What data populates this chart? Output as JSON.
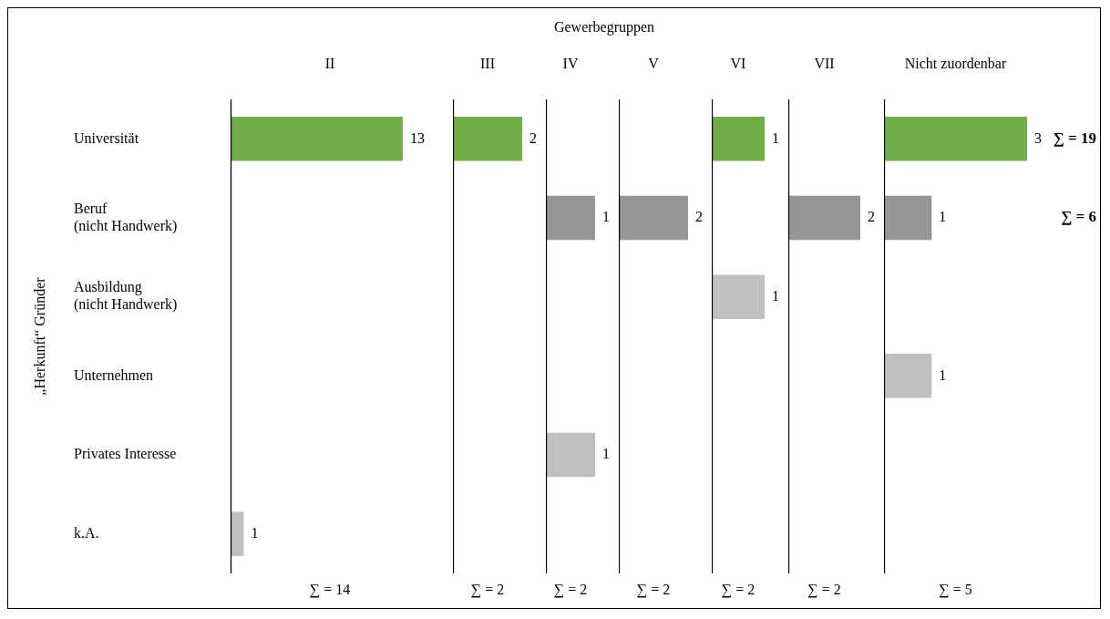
{
  "chart_data": [
    {
      "type": "bar",
      "orientation": "horizontal",
      "title": "II",
      "ylabel": "„Herkunft“ Gründer",
      "categories": [
        "Universität",
        "Beruf\n(nicht Handwerk)",
        "Ausbildung\n(nicht Handwerk)",
        "Unternehmen",
        "Privates Interesse",
        "k.A."
      ],
      "values": [
        13,
        null,
        null,
        null,
        null,
        1
      ],
      "colors": [
        "#70ad47",
        "#969696",
        "#c0c0c0",
        "#c0c0c0",
        "#c0c0c0",
        "#c0c0c0"
      ],
      "data_labels": true,
      "tick_labels": "y",
      "grid": false,
      "legend": false,
      "annotations": [
        "∑ = 14"
      ]
    },
    {
      "type": "bar",
      "orientation": "horizontal",
      "title": "III",
      "categories": [
        "Universität",
        "Beruf\n(nicht Handwerk)",
        "Ausbildung\n(nicht Handwerk)",
        "Unternehmen",
        "Privates Interesse",
        "k.A."
      ],
      "values": [
        2,
        null,
        null,
        null,
        null,
        null
      ],
      "colors": [
        "#70ad47",
        "#969696",
        "#c0c0c0",
        "#c0c0c0",
        "#c0c0c0",
        "#c0c0c0"
      ],
      "data_labels": true,
      "tick_labels": false,
      "grid": false,
      "legend": false,
      "annotations": [
        "∑ = 2"
      ]
    },
    {
      "type": "bar",
      "orientation": "horizontal",
      "title": "IV",
      "subtitle": "Gewerbegruppen",
      "categories": [
        "Universität",
        "Beruf\n(nicht Handwerk)",
        "Ausbildung\n(nicht Handwerk)",
        "Unternehmen",
        "Privates Interesse",
        "k.A."
      ],
      "values": [
        null,
        1,
        null,
        null,
        1,
        null
      ],
      "colors": [
        "#70ad47",
        "#969696",
        "#c0c0c0",
        "#c0c0c0",
        "#c0c0c0",
        "#c0c0c0"
      ],
      "data_labels": true,
      "tick_labels": false,
      "grid": false,
      "legend": false,
      "annotations": [
        "∑ = 2"
      ]
    },
    {
      "type": "bar",
      "orientation": "horizontal",
      "title": "V",
      "categories": [
        "Universität",
        "Beruf\n(nicht Handwerk)",
        "Ausbildung\n(nicht Handwerk)",
        "Unternehmen",
        "Privates Interesse",
        "k.A."
      ],
      "values": [
        null,
        2,
        null,
        null,
        null,
        null
      ],
      "colors": [
        "#70ad47",
        "#969696",
        "#c0c0c0",
        "#c0c0c0",
        "#c0c0c0",
        "#c0c0c0"
      ],
      "data_labels": true,
      "tick_labels": false,
      "grid": false,
      "legend": false,
      "annotations": [
        "∑ = 2"
      ]
    },
    {
      "type": "bar",
      "orientation": "horizontal",
      "title": "VI",
      "categories": [
        "Universität",
        "Beruf\n(nicht Handwerk)",
        "Ausbildung\n(nicht Handwerk)",
        "Unternehmen",
        "Privates Interesse",
        "k.A."
      ],
      "values": [
        1,
        null,
        1,
        null,
        null,
        null
      ],
      "colors": [
        "#70ad47",
        "#969696",
        "#c0c0c0",
        "#c0c0c0",
        "#c0c0c0",
        "#c0c0c0"
      ],
      "data_labels": true,
      "tick_labels": false,
      "grid": false,
      "legend": false,
      "annotations": [
        "∑ = 2"
      ]
    },
    {
      "type": "bar",
      "orientation": "horizontal",
      "title": "VII",
      "categories": [
        "Universität",
        "Beruf\n(nicht Handwerk)",
        "Ausbildung\n(nicht Handwerk)",
        "Unternehmen",
        "Privates Interesse",
        "k.A."
      ],
      "values": [
        null,
        2,
        null,
        null,
        null,
        null
      ],
      "colors": [
        "#70ad47",
        "#969696",
        "#c0c0c0",
        "#c0c0c0",
        "#c0c0c0",
        "#c0c0c0"
      ],
      "data_labels": true,
      "tick_labels": false,
      "grid": false,
      "legend": false,
      "annotations": [
        "∑ = 2"
      ]
    },
    {
      "type": "bar",
      "orientation": "horizontal",
      "title": "Nicht zuordenbar",
      "categories": [
        "Universität",
        "Beruf\n(nicht Handwerk)",
        "Ausbildung\n(nicht Handwerk)",
        "Unternehmen",
        "Privates Interesse",
        "k.A."
      ],
      "values": [
        3,
        1,
        null,
        1,
        null,
        null
      ],
      "colors": [
        "#70ad47",
        "#969696",
        "#c0c0c0",
        "#c0c0c0",
        "#c0c0c0",
        "#c0c0c0"
      ],
      "data_labels": true,
      "tick_labels": false,
      "grid": false,
      "legend": false,
      "annotations": [
        "∑ = 5",
        "∑ = 19",
        "∑ = 6"
      ]
    }
  ]
}
